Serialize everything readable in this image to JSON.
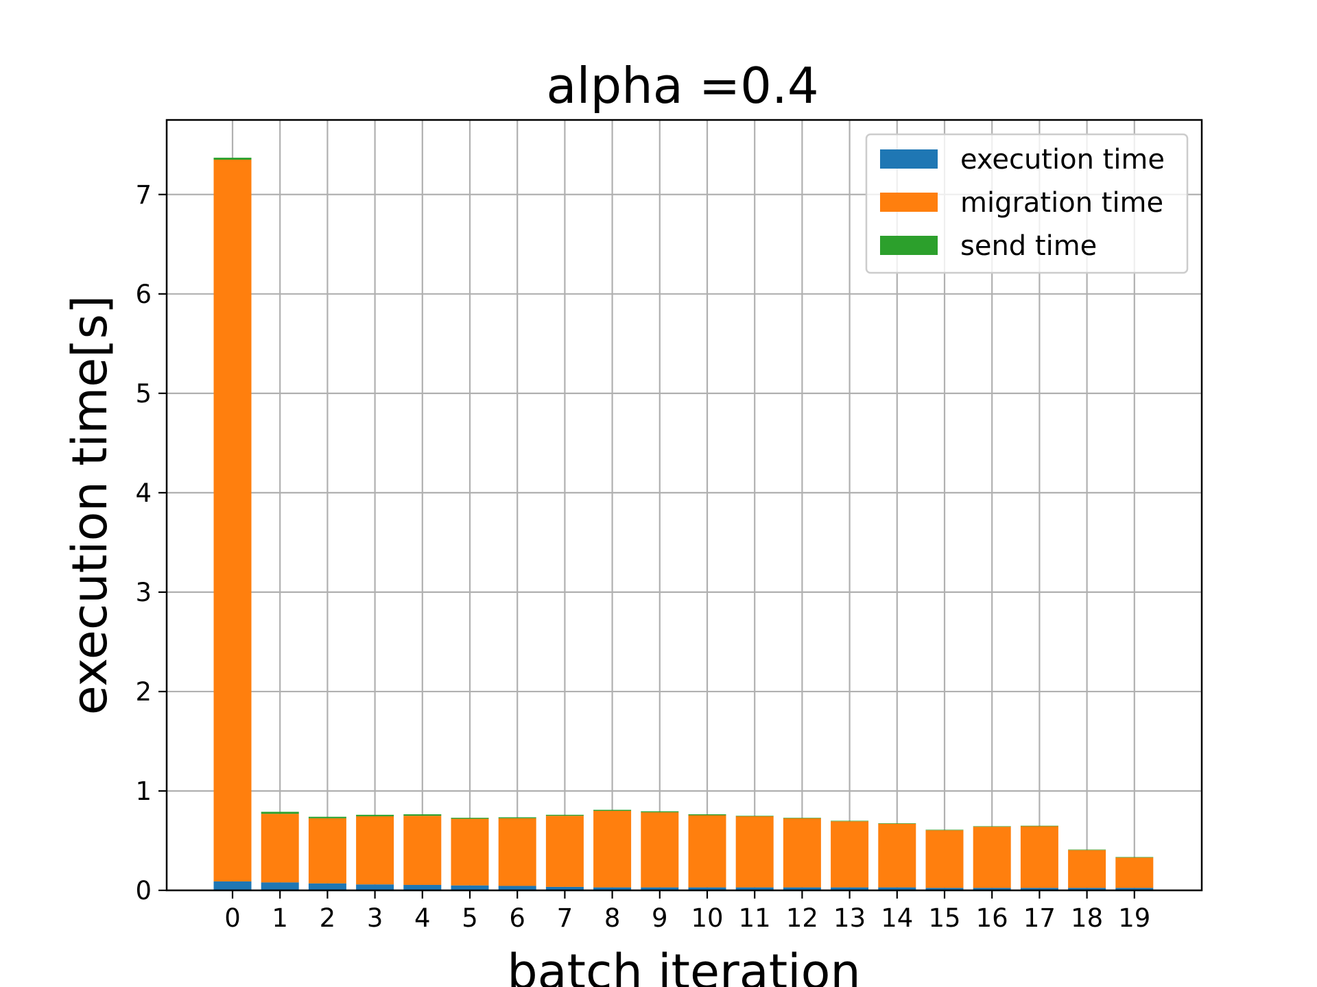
{
  "chart_data": {
    "type": "bar",
    "stacked": true,
    "title": "alpha =0.4",
    "xlabel": "batch iteration",
    "ylabel": "execution time[s]",
    "categories": [
      "0",
      "1",
      "2",
      "3",
      "4",
      "5",
      "6",
      "7",
      "8",
      "9",
      "10",
      "11",
      "12",
      "13",
      "14",
      "15",
      "16",
      "17",
      "18",
      "19"
    ],
    "ylim": [
      0,
      7.75
    ],
    "yticks": [
      0,
      1,
      2,
      3,
      4,
      5,
      6,
      7
    ],
    "grid": true,
    "legend_position": "upper right",
    "series": [
      {
        "name": "execution time",
        "color": "#1f77b4",
        "values": [
          0.09,
          0.08,
          0.07,
          0.06,
          0.055,
          0.05,
          0.045,
          0.035,
          0.03,
          0.03,
          0.03,
          0.03,
          0.03,
          0.03,
          0.03,
          0.025,
          0.025,
          0.025,
          0.025,
          0.025
        ]
      },
      {
        "name": "migration time",
        "color": "#ff7f0e",
        "values": [
          7.26,
          0.69,
          0.655,
          0.685,
          0.695,
          0.67,
          0.68,
          0.715,
          0.77,
          0.755,
          0.725,
          0.715,
          0.695,
          0.665,
          0.64,
          0.58,
          0.615,
          0.62,
          0.38,
          0.305
        ]
      },
      {
        "name": "send time",
        "color": "#2ca02c",
        "values": [
          0.02,
          0.02,
          0.015,
          0.015,
          0.015,
          0.01,
          0.01,
          0.01,
          0.01,
          0.01,
          0.01,
          0.005,
          0.005,
          0.005,
          0.005,
          0.005,
          0.005,
          0.005,
          0.005,
          0.005
        ]
      }
    ]
  }
}
